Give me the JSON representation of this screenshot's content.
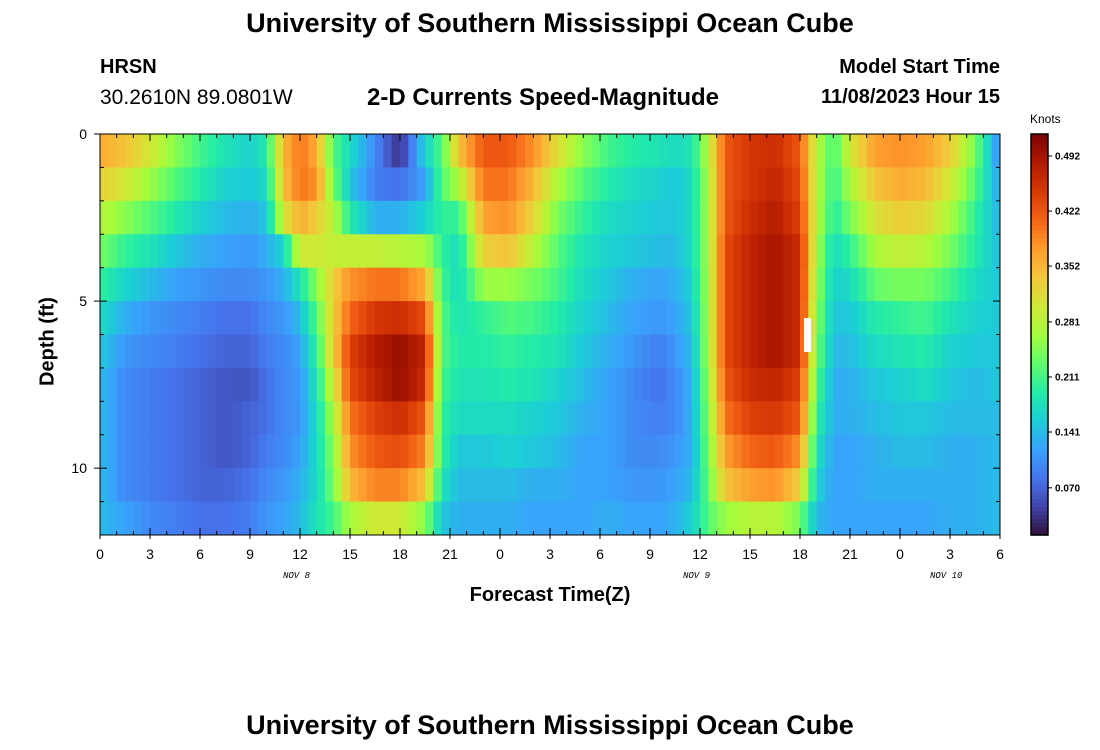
{
  "page": {
    "title": "University of Southern Mississippi Ocean Cube",
    "footer_title": "University of Southern Mississippi Ocean Cube",
    "station": "HRSN",
    "coords": "30.2610N  89.0801W",
    "subtitle": "2-D Currents Speed-Magnitude",
    "start_label": "Model Start Time",
    "start_value": "11/08/2023 Hour 15"
  },
  "chart_data": {
    "type": "heatmap",
    "title": "2-D Currents Speed-Magnitude",
    "xlabel": "Forecast Time(Z)",
    "ylabel": "Depth (ft)",
    "units": "Knots",
    "x_range_hours": [
      0,
      54
    ],
    "y_range_ft": [
      0,
      12
    ],
    "x_tick_labels": [
      "0",
      "3",
      "6",
      "9",
      "12",
      "15",
      "18",
      "21",
      "0",
      "3",
      "6",
      "9",
      "12",
      "15",
      "18",
      "21",
      "0",
      "3",
      "6"
    ],
    "y_tick_labels": [
      "0",
      "5",
      "10"
    ],
    "day_labels": [
      "NOV 8",
      "NOV 9",
      "NOV 10"
    ],
    "colorbar_ticks": [
      "0.070",
      "0.141",
      "0.211",
      "0.281",
      "0.352",
      "0.422",
      "0.492"
    ],
    "color_range": [
      0.01,
      0.52
    ],
    "colorscale": [
      "#30123b",
      "#4145ab",
      "#4675ed",
      "#39a2fc",
      "#1bcfd4",
      "#24eca6",
      "#61fc6c",
      "#a4fc3b",
      "#d1e834",
      "#f3c63a",
      "#fe9b2d",
      "#f36315",
      "#d93806",
      "#b11901",
      "#7a0403"
    ],
    "marker": "I",
    "columns": [
      {
        "t": 0.0,
        "v": [
          0.36,
          0.33,
          0.28,
          0.24,
          0.2,
          0.17,
          0.15,
          0.14,
          0.14,
          0.14,
          0.14,
          0.14
        ]
      },
      {
        "t": 1.5,
        "v": [
          0.34,
          0.3,
          0.25,
          0.2,
          0.16,
          0.13,
          0.11,
          0.1,
          0.1,
          0.1,
          0.1,
          0.12
        ]
      },
      {
        "t": 3.0,
        "v": [
          0.3,
          0.26,
          0.22,
          0.18,
          0.14,
          0.11,
          0.1,
          0.09,
          0.09,
          0.09,
          0.09,
          0.1
        ]
      },
      {
        "t": 4.5,
        "v": [
          0.25,
          0.22,
          0.19,
          0.15,
          0.12,
          0.1,
          0.09,
          0.08,
          0.08,
          0.08,
          0.08,
          0.09
        ]
      },
      {
        "t": 6.0,
        "v": [
          0.21,
          0.19,
          0.16,
          0.13,
          0.11,
          0.09,
          0.08,
          0.07,
          0.07,
          0.07,
          0.07,
          0.08
        ]
      },
      {
        "t": 7.5,
        "v": [
          0.18,
          0.16,
          0.14,
          0.12,
          0.1,
          0.08,
          0.07,
          0.06,
          0.06,
          0.06,
          0.07,
          0.08
        ]
      },
      {
        "t": 9.0,
        "v": [
          0.16,
          0.15,
          0.13,
          0.11,
          0.1,
          0.08,
          0.07,
          0.06,
          0.07,
          0.07,
          0.08,
          0.09
        ]
      },
      {
        "t": 10.0,
        "v": [
          0.19,
          0.17,
          0.15,
          0.13,
          0.11,
          0.1,
          0.09,
          0.08,
          0.08,
          0.09,
          0.1,
          0.11
        ]
      },
      {
        "t": 11.0,
        "v": [
          0.35,
          0.34,
          0.3,
          0.16,
          0.13,
          0.11,
          0.1,
          0.1,
          0.1,
          0.1,
          0.11,
          0.12
        ]
      },
      {
        "t": 12.0,
        "v": [
          0.4,
          0.4,
          0.36,
          0.3,
          0.18,
          0.14,
          0.12,
          0.11,
          0.11,
          0.12,
          0.13,
          0.14
        ]
      },
      {
        "t": 13.0,
        "v": [
          0.36,
          0.38,
          0.33,
          0.3,
          0.25,
          0.22,
          0.2,
          0.18,
          0.17,
          0.17,
          0.17,
          0.18
        ]
      },
      {
        "t": 14.0,
        "v": [
          0.22,
          0.24,
          0.28,
          0.29,
          0.33,
          0.33,
          0.33,
          0.3,
          0.27,
          0.25,
          0.24,
          0.21
        ]
      },
      {
        "t": 15.0,
        "v": [
          0.17,
          0.15,
          0.19,
          0.29,
          0.38,
          0.41,
          0.44,
          0.43,
          0.4,
          0.38,
          0.35,
          0.27
        ]
      },
      {
        "t": 16.5,
        "v": [
          0.1,
          0.09,
          0.13,
          0.29,
          0.4,
          0.45,
          0.48,
          0.47,
          0.44,
          0.42,
          0.39,
          0.3
        ]
      },
      {
        "t": 18.0,
        "v": [
          0.03,
          0.08,
          0.13,
          0.28,
          0.4,
          0.46,
          0.5,
          0.5,
          0.46,
          0.43,
          0.39,
          0.3
        ]
      },
      {
        "t": 19.5,
        "v": [
          0.16,
          0.12,
          0.16,
          0.27,
          0.36,
          0.43,
          0.47,
          0.46,
          0.42,
          0.39,
          0.34,
          0.25
        ]
      },
      {
        "t": 20.5,
        "v": [
          0.22,
          0.22,
          0.2,
          0.2,
          0.21,
          0.22,
          0.22,
          0.21,
          0.2,
          0.2,
          0.18,
          0.15
        ]
      },
      {
        "t": 21.5,
        "v": [
          0.34,
          0.27,
          0.2,
          0.17,
          0.17,
          0.18,
          0.19,
          0.18,
          0.17,
          0.15,
          0.14,
          0.13
        ]
      },
      {
        "t": 23.0,
        "v": [
          0.42,
          0.4,
          0.37,
          0.33,
          0.26,
          0.2,
          0.19,
          0.18,
          0.17,
          0.15,
          0.14,
          0.13
        ]
      },
      {
        "t": 24.5,
        "v": [
          0.42,
          0.4,
          0.38,
          0.34,
          0.26,
          0.22,
          0.2,
          0.19,
          0.17,
          0.16,
          0.14,
          0.13
        ]
      },
      {
        "t": 26.0,
        "v": [
          0.38,
          0.35,
          0.32,
          0.28,
          0.24,
          0.21,
          0.19,
          0.18,
          0.16,
          0.15,
          0.13,
          0.12
        ]
      },
      {
        "t": 27.5,
        "v": [
          0.31,
          0.27,
          0.24,
          0.22,
          0.21,
          0.19,
          0.18,
          0.16,
          0.15,
          0.14,
          0.13,
          0.12
        ]
      },
      {
        "t": 29.0,
        "v": [
          0.25,
          0.22,
          0.2,
          0.18,
          0.17,
          0.16,
          0.15,
          0.14,
          0.13,
          0.12,
          0.12,
          0.12
        ]
      },
      {
        "t": 30.5,
        "v": [
          0.21,
          0.19,
          0.17,
          0.16,
          0.15,
          0.14,
          0.13,
          0.12,
          0.12,
          0.12,
          0.12,
          0.13
        ]
      },
      {
        "t": 32.0,
        "v": [
          0.19,
          0.17,
          0.16,
          0.15,
          0.13,
          0.12,
          0.11,
          0.1,
          0.1,
          0.1,
          0.11,
          0.12
        ]
      },
      {
        "t": 33.5,
        "v": [
          0.18,
          0.16,
          0.15,
          0.14,
          0.12,
          0.11,
          0.09,
          0.08,
          0.09,
          0.1,
          0.11,
          0.12
        ]
      },
      {
        "t": 34.5,
        "v": [
          0.17,
          0.15,
          0.15,
          0.14,
          0.13,
          0.12,
          0.11,
          0.1,
          0.1,
          0.11,
          0.12,
          0.13
        ]
      },
      {
        "t": 35.5,
        "v": [
          0.18,
          0.17,
          0.17,
          0.17,
          0.16,
          0.15,
          0.14,
          0.13,
          0.13,
          0.13,
          0.14,
          0.16
        ]
      },
      {
        "t": 36.5,
        "v": [
          0.28,
          0.27,
          0.27,
          0.27,
          0.27,
          0.27,
          0.27,
          0.26,
          0.25,
          0.24,
          0.23,
          0.22
        ]
      },
      {
        "t": 37.5,
        "v": [
          0.42,
          0.42,
          0.42,
          0.43,
          0.43,
          0.43,
          0.43,
          0.42,
          0.4,
          0.37,
          0.34,
          0.26
        ]
      },
      {
        "t": 39.0,
        "v": [
          0.45,
          0.45,
          0.46,
          0.47,
          0.47,
          0.47,
          0.47,
          0.46,
          0.44,
          0.41,
          0.37,
          0.28
        ]
      },
      {
        "t": 40.5,
        "v": [
          0.46,
          0.47,
          0.48,
          0.49,
          0.49,
          0.49,
          0.49,
          0.47,
          0.45,
          0.42,
          0.38,
          0.28
        ]
      },
      {
        "t": 42.0,
        "v": [
          0.42,
          0.43,
          0.44,
          0.46,
          0.46,
          0.46,
          0.46,
          0.44,
          0.42,
          0.38,
          0.33,
          0.24
        ]
      },
      {
        "t": 43.0,
        "v": [
          0.28,
          0.28,
          0.28,
          0.27,
          0.26,
          0.25,
          0.24,
          0.22,
          0.2,
          0.18,
          0.16,
          0.14
        ]
      },
      {
        "t": 44.0,
        "v": [
          0.21,
          0.2,
          0.19,
          0.17,
          0.16,
          0.15,
          0.14,
          0.13,
          0.13,
          0.12,
          0.12,
          0.12
        ]
      },
      {
        "t": 45.0,
        "v": [
          0.3,
          0.27,
          0.24,
          0.2,
          0.17,
          0.15,
          0.14,
          0.13,
          0.13,
          0.12,
          0.12,
          0.12
        ]
      },
      {
        "t": 46.5,
        "v": [
          0.37,
          0.34,
          0.31,
          0.27,
          0.23,
          0.19,
          0.17,
          0.15,
          0.14,
          0.13,
          0.13,
          0.12
        ]
      },
      {
        "t": 48.0,
        "v": [
          0.38,
          0.36,
          0.33,
          0.29,
          0.24,
          0.2,
          0.18,
          0.16,
          0.15,
          0.14,
          0.13,
          0.12
        ]
      },
      {
        "t": 49.5,
        "v": [
          0.37,
          0.35,
          0.32,
          0.28,
          0.24,
          0.21,
          0.19,
          0.17,
          0.15,
          0.14,
          0.13,
          0.12
        ]
      },
      {
        "t": 51.0,
        "v": [
          0.33,
          0.3,
          0.27,
          0.24,
          0.21,
          0.18,
          0.16,
          0.15,
          0.14,
          0.13,
          0.13,
          0.13
        ]
      },
      {
        "t": 52.5,
        "v": [
          0.24,
          0.22,
          0.2,
          0.19,
          0.17,
          0.16,
          0.15,
          0.14,
          0.14,
          0.13,
          0.13,
          0.13
        ]
      },
      {
        "t": 54.0,
        "v": [
          0.1,
          0.12,
          0.13,
          0.14,
          0.15,
          0.15,
          0.15,
          0.15,
          0.14,
          0.14,
          0.14,
          0.14
        ]
      }
    ]
  }
}
